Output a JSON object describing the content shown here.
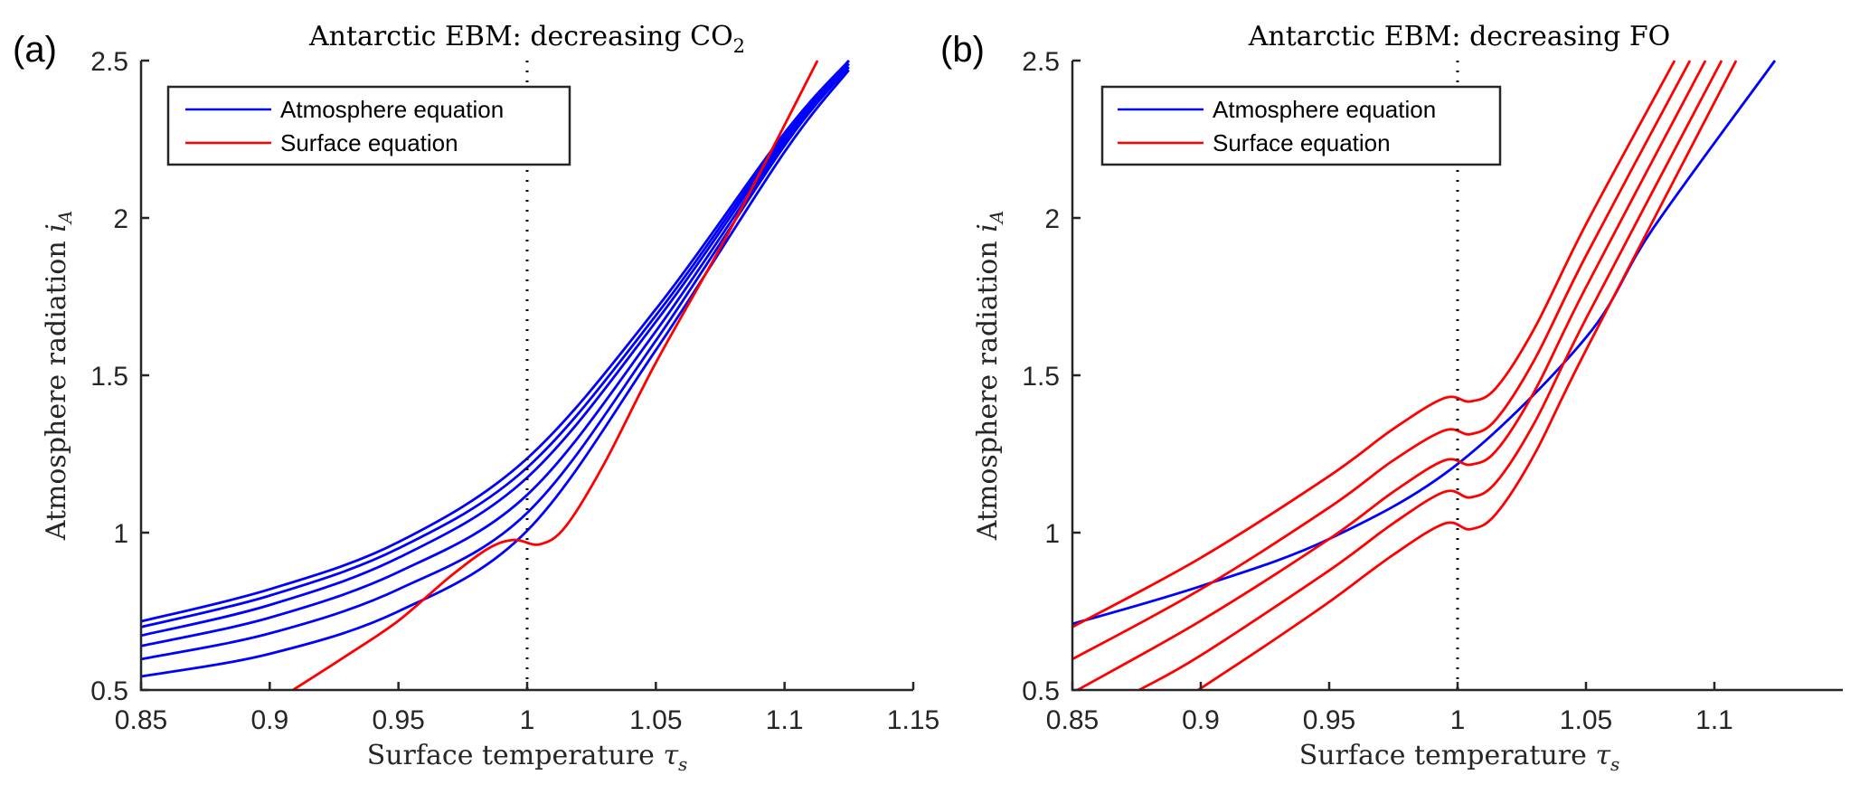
{
  "chart_data": [
    {
      "panel_label": "(a)",
      "type": "line",
      "title": "Antarctic EBM: decreasing CO",
      "title_subscript": "2",
      "xlabel": "Surface temperature ",
      "xlabel_symbol": "τ",
      "xlabel_sub": "s",
      "ylabel": "Atmosphere radiation ",
      "ylabel_symbol": "i",
      "ylabel_sub": "A",
      "xlim": [
        0.85,
        1.15
      ],
      "ylim": [
        0.5,
        2.5
      ],
      "xticks": [
        0.85,
        0.9,
        0.95,
        1.0,
        1.05,
        1.1,
        1.15
      ],
      "xtick_labels": [
        "0.85",
        "0.9",
        "0.95",
        "1",
        "1.05",
        "1.1",
        "1.15"
      ],
      "yticks": [
        0.5,
        1.0,
        1.5,
        2.0,
        2.5
      ],
      "ytick_labels": [
        "0.5",
        "1",
        "1.5",
        "2",
        "2.5"
      ],
      "grid": false,
      "reference_line": {
        "x": 1.0,
        "style": "dotted"
      },
      "legend": {
        "placement": "top-left",
        "entries": [
          {
            "label": "Atmosphere equation",
            "color": "#0000ff"
          },
          {
            "label": "Surface equation",
            "color": "#ff0000"
          }
        ]
      },
      "series": [
        {
          "name": "Atmosphere equation",
          "color": "#0000ff",
          "x": [
            0.85,
            0.9,
            0.95,
            1.0,
            1.05,
            1.1,
            1.125
          ],
          "y": [
            0.718,
            0.82,
            0.97,
            1.236,
            1.71,
            2.27,
            2.5
          ]
        },
        {
          "name": "Atmosphere equation",
          "color": "#0000ff",
          "x": [
            0.85,
            0.9,
            0.95,
            1.0,
            1.05,
            1.1,
            1.125
          ],
          "y": [
            0.7,
            0.8,
            0.95,
            1.207,
            1.69,
            2.26,
            2.5
          ]
        },
        {
          "name": "Atmosphere equation",
          "color": "#0000ff",
          "x": [
            0.85,
            0.9,
            0.95,
            1.0,
            1.05,
            1.1,
            1.125
          ],
          "y": [
            0.673,
            0.77,
            0.92,
            1.175,
            1.67,
            2.25,
            2.5
          ]
        },
        {
          "name": "Atmosphere equation",
          "color": "#0000ff",
          "x": [
            0.85,
            0.9,
            0.95,
            1.0,
            1.05,
            1.1,
            1.125
          ],
          "y": [
            0.64,
            0.73,
            0.875,
            1.12,
            1.64,
            2.24,
            2.49
          ]
        },
        {
          "name": "Atmosphere equation",
          "color": "#0000ff",
          "x": [
            0.85,
            0.9,
            0.95,
            1.0,
            1.05,
            1.1,
            1.125
          ],
          "y": [
            0.598,
            0.68,
            0.82,
            1.063,
            1.61,
            2.23,
            2.48
          ]
        },
        {
          "name": "Atmosphere equation",
          "color": "#0000ff",
          "x": [
            0.85,
            0.9,
            0.95,
            1.0,
            1.05,
            1.1,
            1.125
          ],
          "y": [
            0.543,
            0.615,
            0.75,
            1.006,
            1.58,
            2.21,
            2.47
          ]
        },
        {
          "name": "Surface equation",
          "color": "#ff0000",
          "x": [
            0.909,
            0.93,
            0.95,
            0.97,
            0.985,
            0.995,
            1.005,
            1.015,
            1.03,
            1.05,
            1.08,
            1.1128
          ],
          "y": [
            0.5,
            0.61,
            0.72,
            0.86,
            0.95,
            0.977,
            0.963,
            1.02,
            1.22,
            1.54,
            1.98,
            2.5
          ]
        }
      ]
    },
    {
      "panel_label": "(b)",
      "type": "line",
      "title": "Antarctic EBM: decreasing FO",
      "title_subscript": "",
      "xlabel": "Surface temperature ",
      "xlabel_symbol": "τ",
      "xlabel_sub": "s",
      "ylabel": "Atmosphere radiation ",
      "ylabel_symbol": "i",
      "ylabel_sub": "A",
      "xlim": [
        0.85,
        1.15
      ],
      "ylim": [
        0.5,
        2.5
      ],
      "xticks": [
        0.85,
        0.9,
        0.95,
        1.0,
        1.05,
        1.1
      ],
      "xtick_labels": [
        "0.85",
        "0.9",
        "0.95",
        "1",
        "1.05",
        "1.1"
      ],
      "yticks": [
        0.5,
        1.0,
        1.5,
        2.0,
        2.5
      ],
      "ytick_labels": [
        "0.5",
        "1",
        "1.5",
        "2",
        "2.5"
      ],
      "grid": false,
      "reference_line": {
        "x": 1.0,
        "style": "dotted"
      },
      "legend": {
        "placement": "top-left",
        "entries": [
          {
            "label": "Atmosphere equation",
            "color": "#0000ff"
          },
          {
            "label": "Surface equation",
            "color": "#ff0000"
          }
        ]
      },
      "series": [
        {
          "name": "Atmosphere equation",
          "color": "#0000ff",
          "x": [
            0.85,
            0.9,
            0.95,
            1.0,
            1.05,
            1.076,
            1.1236
          ],
          "y": [
            0.71,
            0.83,
            0.98,
            1.218,
            1.62,
            1.965,
            2.5
          ]
        },
        {
          "name": "Surface equation",
          "color": "#ff0000",
          "x": [
            0.85,
            0.9,
            0.95,
            0.975,
            0.995,
            1.005,
            1.015,
            1.03,
            1.05,
            1.0845
          ],
          "y": [
            0.7,
            0.92,
            1.18,
            1.33,
            1.428,
            1.417,
            1.46,
            1.65,
            1.98,
            2.5
          ]
        },
        {
          "name": "Surface equation",
          "color": "#ff0000",
          "x": [
            0.85,
            0.9,
            0.95,
            0.975,
            0.995,
            1.005,
            1.015,
            1.03,
            1.05,
            1.0905
          ],
          "y": [
            0.598,
            0.82,
            1.08,
            1.23,
            1.325,
            1.313,
            1.36,
            1.55,
            1.88,
            2.5
          ]
        },
        {
          "name": "Surface equation",
          "color": "#ff0000",
          "x": [
            0.852,
            0.9,
            0.95,
            0.975,
            0.995,
            1.005,
            1.015,
            1.03,
            1.05,
            1.0965
          ],
          "y": [
            0.5,
            0.72,
            0.98,
            1.13,
            1.23,
            1.216,
            1.26,
            1.45,
            1.78,
            2.5
          ]
        },
        {
          "name": "Surface equation",
          "color": "#ff0000",
          "x": [
            0.876,
            0.9,
            0.95,
            0.975,
            0.995,
            1.005,
            1.015,
            1.03,
            1.05,
            1.1028
          ],
          "y": [
            0.5,
            0.61,
            0.88,
            1.03,
            1.13,
            1.112,
            1.16,
            1.35,
            1.68,
            2.5
          ]
        },
        {
          "name": "Surface equation",
          "color": "#ff0000",
          "x": [
            0.899,
            0.925,
            0.95,
            0.975,
            0.995,
            1.005,
            1.015,
            1.03,
            1.05,
            1.1085
          ],
          "y": [
            0.5,
            0.64,
            0.78,
            0.93,
            1.029,
            1.011,
            1.06,
            1.25,
            1.58,
            2.5
          ]
        }
      ]
    }
  ]
}
